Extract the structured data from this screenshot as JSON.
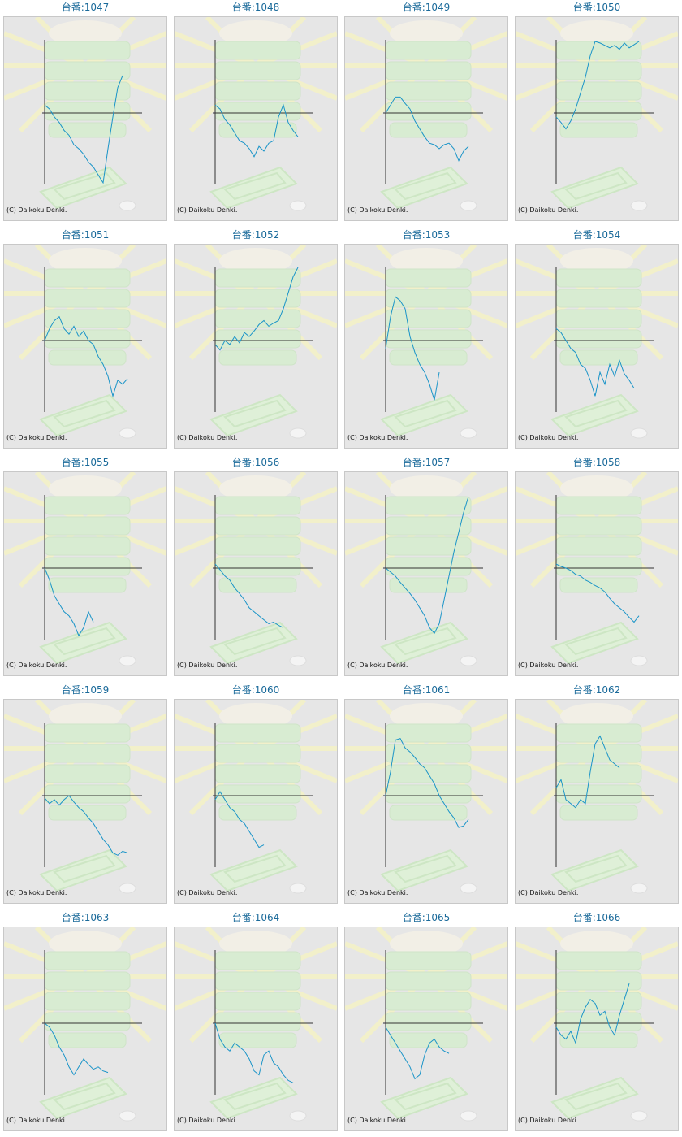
{
  "chart_data": [
    {
      "type": "line",
      "title": "台番:1047",
      "credit": "(C) Daikoku Denki.",
      "color": "#1a94c8",
      "ylim": [
        -90,
        92
      ],
      "values": [
        10,
        5,
        -5,
        -12,
        -22,
        -28,
        -40,
        -45,
        -52,
        -62,
        -68,
        -78,
        -88,
        -45,
        -5,
        32,
        47
      ]
    },
    {
      "type": "line",
      "title": "台番:1048",
      "credit": "(C) Daikoku Denki.",
      "color": "#1a94c8",
      "ylim": [
        -90,
        92
      ],
      "values": [
        10,
        5,
        -8,
        -15,
        -25,
        -35,
        -38,
        -45,
        -55,
        -42,
        -48,
        -38,
        -35,
        -5,
        10,
        -12,
        -22,
        -30
      ]
    },
    {
      "type": "line",
      "title": "台番:1049",
      "credit": "(C) Daikoku Denki.",
      "color": "#1a94c8",
      "ylim": [
        -90,
        92
      ],
      "values": [
        0,
        10,
        20,
        20,
        12,
        5,
        -10,
        -20,
        -30,
        -38,
        -40,
        -45,
        -40,
        -38,
        -45,
        -60,
        -48,
        -42
      ]
    },
    {
      "type": "line",
      "title": "台番:1050",
      "credit": "(C) Daikoku Denki.",
      "color": "#1a94c8",
      "ylim": [
        -90,
        92
      ],
      "values": [
        -5,
        -12,
        -20,
        -10,
        5,
        25,
        45,
        72,
        90,
        88,
        85,
        82,
        85,
        80,
        88,
        82,
        86,
        90
      ]
    },
    {
      "type": "line",
      "title": "台番:1051",
      "credit": "(C) Daikoku Denki.",
      "color": "#1a94c8",
      "ylim": [
        -90,
        92
      ],
      "values": [
        0,
        15,
        25,
        30,
        15,
        8,
        18,
        5,
        12,
        0,
        -5,
        -20,
        -30,
        -45,
        -70,
        -50,
        -55,
        -48
      ]
    },
    {
      "type": "line",
      "title": "台番:1052",
      "credit": "(C) Daikoku Denki.",
      "color": "#1a94c8",
      "ylim": [
        -90,
        92
      ],
      "values": [
        -5,
        -12,
        0,
        -5,
        5,
        -3,
        10,
        5,
        12,
        20,
        25,
        18,
        22,
        25,
        40,
        60,
        80,
        92
      ]
    },
    {
      "type": "line",
      "title": "台番:1053",
      "credit": "(C) Daikoku Denki.",
      "color": "#1a94c8",
      "ylim": [
        -90,
        92
      ],
      "values": [
        -10,
        30,
        55,
        50,
        40,
        5,
        -15,
        -30,
        -40,
        -55,
        -75,
        -40
      ]
    },
    {
      "type": "line",
      "title": "台番:1054",
      "credit": "(C) Daikoku Denki.",
      "color": "#1a94c8",
      "ylim": [
        -90,
        92
      ],
      "values": [
        15,
        10,
        0,
        -10,
        -15,
        -30,
        -35,
        -50,
        -70,
        -40,
        -55,
        -30,
        -45,
        -25,
        -42,
        -50,
        -60
      ]
    },
    {
      "type": "line",
      "title": "台番:1055",
      "credit": "(C) Daikoku Denki.",
      "color": "#1a94c8",
      "ylim": [
        -90,
        92
      ],
      "values": [
        0,
        -15,
        -35,
        -45,
        -55,
        -60,
        -70,
        -85,
        -75,
        -55,
        -68
      ]
    },
    {
      "type": "line",
      "title": "台番:1056",
      "credit": "(C) Daikoku Denki.",
      "color": "#1a94c8",
      "ylim": [
        -90,
        92
      ],
      "values": [
        5,
        -2,
        -10,
        -15,
        -25,
        -32,
        -40,
        -50,
        -55,
        -60,
        -65,
        -70,
        -68,
        -72,
        -75
      ]
    },
    {
      "type": "line",
      "title": "台番:1057",
      "credit": "(C) Daikoku Denki.",
      "color": "#1a94c8",
      "ylim": [
        -90,
        92
      ],
      "values": [
        0,
        -5,
        -10,
        -18,
        -25,
        -32,
        -40,
        -50,
        -60,
        -75,
        -82,
        -70,
        -40,
        -10,
        20,
        45,
        70,
        90
      ]
    },
    {
      "type": "line",
      "title": "台番:1058",
      "credit": "(C) Daikoku Denki.",
      "color": "#1a94c8",
      "ylim": [
        -90,
        92
      ],
      "values": [
        5,
        2,
        0,
        -3,
        -8,
        -10,
        -15,
        -18,
        -22,
        -25,
        -30,
        -38,
        -45,
        -50,
        -55,
        -62,
        -68,
        -60
      ]
    },
    {
      "type": "line",
      "title": "台番:1059",
      "credit": "(C) Daikoku Denki.",
      "color": "#1a94c8",
      "ylim": [
        -90,
        92
      ],
      "values": [
        -3,
        -10,
        -5,
        -12,
        -5,
        0,
        -8,
        -15,
        -20,
        -28,
        -35,
        -45,
        -55,
        -62,
        -72,
        -75,
        -70,
        -72
      ]
    },
    {
      "type": "line",
      "title": "台番:1060",
      "credit": "(C) Daikoku Denki.",
      "color": "#1a94c8",
      "ylim": [
        -90,
        92
      ],
      "values": [
        -5,
        5,
        -5,
        -15,
        -20,
        -30,
        -35,
        -45,
        -55,
        -65,
        -62
      ]
    },
    {
      "type": "line",
      "title": "台番:1061",
      "credit": "(C) Daikoku Denki.",
      "color": "#1a94c8",
      "ylim": [
        -90,
        92
      ],
      "values": [
        0,
        30,
        70,
        72,
        60,
        55,
        48,
        40,
        35,
        25,
        15,
        0,
        -10,
        -20,
        -28,
        -40,
        -38,
        -30
      ]
    },
    {
      "type": "line",
      "title": "台番:1062",
      "credit": "(C) Daikoku Denki.",
      "color": "#1a94c8",
      "ylim": [
        -90,
        92
      ],
      "values": [
        10,
        20,
        -5,
        -10,
        -15,
        -5,
        -10,
        30,
        65,
        75,
        60,
        45,
        40,
        35
      ]
    },
    {
      "type": "line",
      "title": "台番:1063",
      "credit": "(C) Daikoku Denki.",
      "color": "#1a94c8",
      "ylim": [
        -90,
        92
      ],
      "values": [
        0,
        -5,
        -15,
        -30,
        -40,
        -55,
        -65,
        -55,
        -45,
        -52,
        -58,
        -55,
        -60,
        -62
      ]
    },
    {
      "type": "line",
      "title": "台番:1064",
      "credit": "(C) Daikoku Denki.",
      "color": "#1a94c8",
      "ylim": [
        -90,
        92
      ],
      "values": [
        0,
        -20,
        -30,
        -35,
        -25,
        -30,
        -35,
        -45,
        -60,
        -65,
        -40,
        -35,
        -50,
        -55,
        -65,
        -72,
        -75
      ]
    },
    {
      "type": "line",
      "title": "台番:1065",
      "credit": "(C) Daikoku Denki.",
      "color": "#1a94c8",
      "ylim": [
        -90,
        92
      ],
      "values": [
        -5,
        -15,
        -25,
        -35,
        -45,
        -55,
        -70,
        -65,
        -40,
        -25,
        -20,
        -30,
        -35,
        -38
      ]
    },
    {
      "type": "line",
      "title": "台番:1066",
      "credit": "(C) Daikoku Denki.",
      "color": "#1a94c8",
      "ylim": [
        -90,
        92
      ],
      "values": [
        -5,
        -15,
        -20,
        -10,
        -25,
        5,
        20,
        30,
        25,
        10,
        15,
        -5,
        -15,
        10,
        30,
        50
      ]
    }
  ]
}
